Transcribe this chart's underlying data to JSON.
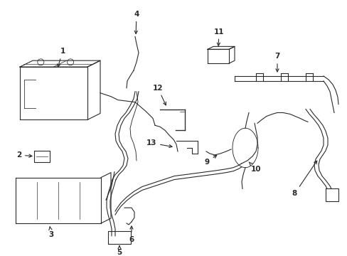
{
  "bg_color": "#ffffff",
  "line_color": "#2a2a2a",
  "fig_width": 4.89,
  "fig_height": 3.6,
  "dpi": 100,
  "lw": 0.8,
  "fontsize": 7.5
}
